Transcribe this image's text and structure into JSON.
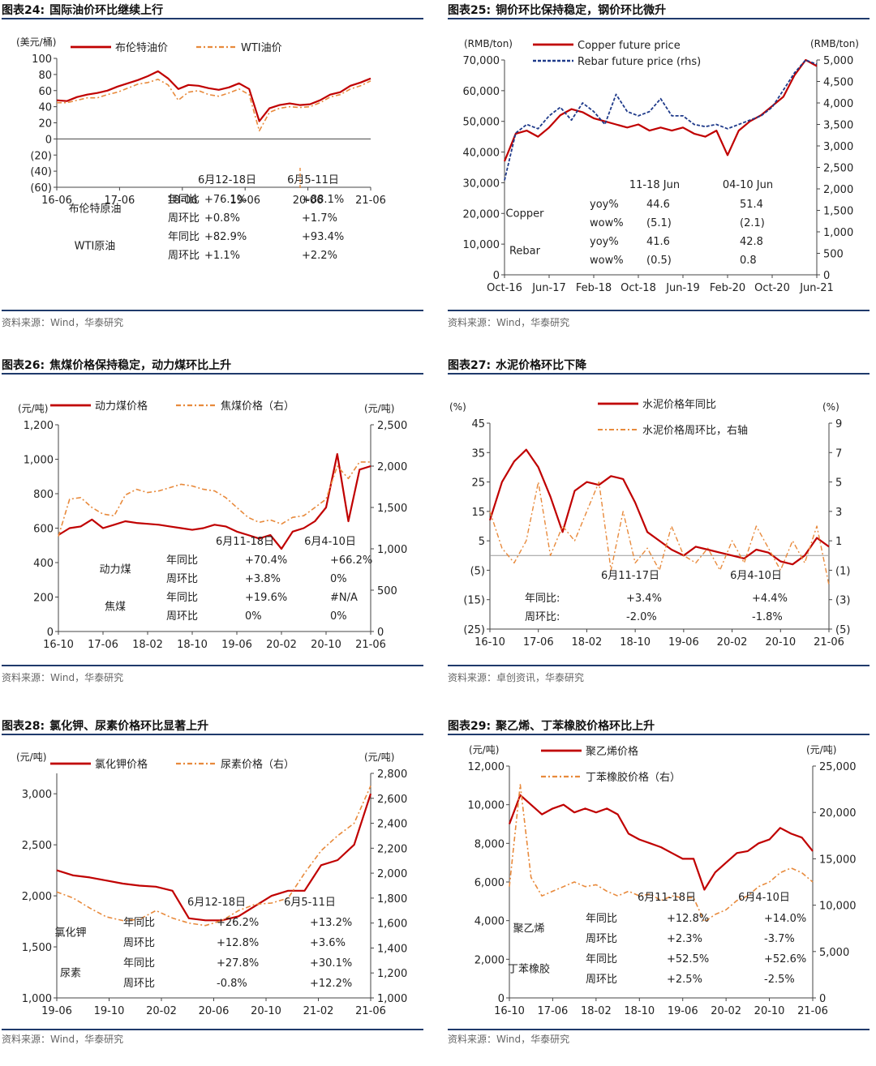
{
  "chart_data": [
    {
      "type": "line",
      "fig": "图表24:",
      "title": "国际油价环比继续上行",
      "source": "资料来源：Wind，华泰研究",
      "ylabel_left": "(美元/桶)",
      "ylabel_right": "",
      "ylim_left": [
        -60,
        100
      ],
      "yticks_left": [
        "100",
        "80",
        "60",
        "40",
        "20",
        "0",
        "(20)",
        "(40)",
        "(60)"
      ],
      "yticks_left_values": [
        100,
        80,
        60,
        40,
        20,
        0,
        -20,
        -40,
        -60
      ],
      "ylim_right": null,
      "yticks_right": [],
      "yticks_right_values": [],
      "xticks": [
        "16-06",
        "17-06",
        "18-06",
        "19-06",
        "20-06",
        "21-06"
      ],
      "series": [
        {
          "name": "布伦特油价",
          "axis": "left",
          "color": "#c00000",
          "dash": "",
          "width": 2.2,
          "values": [
            48,
            47,
            52,
            55,
            57,
            60,
            65,
            69,
            73,
            78,
            84,
            75,
            62,
            67,
            66,
            63,
            61,
            64,
            69,
            62,
            22,
            38,
            42,
            44,
            42,
            43,
            48,
            55,
            58,
            66,
            70,
            75
          ]
        },
        {
          "name": "WTI油价",
          "axis": "left",
          "color": "#e88a3c",
          "dash": "6,3,2,3",
          "width": 1.6,
          "values": [
            45,
            45,
            48,
            51,
            51,
            55,
            58,
            63,
            68,
            70,
            74,
            67,
            48,
            58,
            60,
            55,
            53,
            57,
            62,
            55,
            10,
            33,
            38,
            40,
            39,
            40,
            45,
            52,
            55,
            62,
            66,
            72
          ]
        }
      ],
      "table": {
        "headers": [
          "6月12-18日",
          "6月5-11日"
        ],
        "rows": [
          {
            "group": "布伦特原油",
            "label": "年同比",
            "v1": "+76.1%",
            "v2": "+88.1%"
          },
          {
            "group": "",
            "label": "周环比",
            "v1": "+0.8%",
            "v2": "+1.7%"
          },
          {
            "group": "WTI原油",
            "label": "年同比",
            "v1": "+82.9%",
            "v2": "+93.4%"
          },
          {
            "group": "",
            "label": "周环比",
            "v1": "+1.1%",
            "v2": "+2.2%"
          }
        ]
      }
    },
    {
      "type": "line",
      "fig": "图表25:",
      "title": "铜价环比保持稳定，钢价环比微升",
      "source": "资料来源：Wind，华泰研究",
      "ylabel_left": "(RMB/ton)",
      "ylabel_right": "(RMB/ton)",
      "ylim_left": [
        0,
        70000
      ],
      "yticks_left": [
        "70,000",
        "60,000",
        "50,000",
        "40,000",
        "30,000",
        "20,000",
        "10,000",
        "0"
      ],
      "yticks_left_values": [
        70000,
        60000,
        50000,
        40000,
        30000,
        20000,
        10000,
        0
      ],
      "ylim_right": [
        0,
        5000
      ],
      "yticks_right": [
        "5,000",
        "4,500",
        "4,000",
        "3,500",
        "3,000",
        "2,500",
        "2,000",
        "1,500",
        "1,000",
        "500",
        "0"
      ],
      "yticks_right_values": [
        5000,
        4500,
        4000,
        3500,
        3000,
        2500,
        2000,
        1500,
        1000,
        500,
        0
      ],
      "xticks": [
        "Oct-16",
        "Jun-17",
        "Feb-18",
        "Oct-18",
        "Jun-19",
        "Feb-20",
        "Oct-20",
        "Jun-21"
      ],
      "series": [
        {
          "name": "Copper future price",
          "axis": "left",
          "color": "#c00000",
          "dash": "",
          "width": 2.2,
          "values": [
            37000,
            46000,
            47000,
            45000,
            48000,
            52000,
            54000,
            53000,
            51000,
            50000,
            49000,
            48000,
            49000,
            47000,
            48000,
            47000,
            48000,
            46000,
            45000,
            47000,
            39000,
            47000,
            50000,
            52000,
            55000,
            58000,
            65000,
            70000,
            68000
          ]
        },
        {
          "name": "Rebar future price (rhs)",
          "axis": "right",
          "color": "#1f3a8a",
          "dash": "4,2",
          "width": 1.8,
          "values": [
            2200,
            3300,
            3500,
            3400,
            3700,
            3900,
            3600,
            4000,
            3800,
            3500,
            4200,
            3800,
            3700,
            3800,
            4100,
            3700,
            3700,
            3500,
            3450,
            3500,
            3400,
            3500,
            3600,
            3700,
            3900,
            4300,
            4700,
            5000,
            4900
          ]
        }
      ],
      "table": {
        "headers": [
          "11-18 Jun",
          "04-10 Jun"
        ],
        "rows": [
          {
            "group": "Copper",
            "label": "yoy%",
            "v1": "44.6",
            "v2": "51.4"
          },
          {
            "group": "",
            "label": "wow%",
            "v1": "(5.1)",
            "v2": "(2.1)"
          },
          {
            "group": "Rebar",
            "label": "yoy%",
            "v1": "41.6",
            "v2": "42.8"
          },
          {
            "group": "",
            "label": "wow%",
            "v1": "(0.5)",
            "v2": "0.8"
          }
        ]
      }
    },
    {
      "type": "line",
      "fig": "图表26:",
      "title": "焦煤价格保持稳定，动力煤环比上升",
      "source": "资料来源：Wind，华泰研究",
      "ylabel_left": "(元/吨)",
      "ylabel_right": "(元/吨)",
      "ylim_left": [
        0,
        1200
      ],
      "yticks_left": [
        "1,200",
        "1,000",
        "800",
        "600",
        "400",
        "200",
        "0"
      ],
      "yticks_left_values": [
        1200,
        1000,
        800,
        600,
        400,
        200,
        0
      ],
      "ylim_right": [
        0,
        2500
      ],
      "yticks_right": [
        "2,500",
        "2,000",
        "1,500",
        "1,000",
        "500",
        "0"
      ],
      "yticks_right_values": [
        2500,
        2000,
        1500,
        1000,
        500,
        0
      ],
      "xticks": [
        "16-10",
        "17-06",
        "18-02",
        "18-10",
        "19-06",
        "20-02",
        "20-10",
        "21-06"
      ],
      "series": [
        {
          "name": "动力煤价格",
          "axis": "left",
          "color": "#c00000",
          "dash": "",
          "width": 2.2,
          "values": [
            560,
            600,
            610,
            650,
            600,
            620,
            640,
            630,
            625,
            620,
            610,
            600,
            590,
            600,
            620,
            610,
            580,
            560,
            540,
            560,
            480,
            580,
            600,
            640,
            720,
            1030,
            640,
            940,
            960
          ]
        },
        {
          "name": "焦煤价格（右）",
          "axis": "right",
          "color": "#e88a3c",
          "dash": "6,3,2,3",
          "width": 1.6,
          "values": [
            1150,
            1600,
            1620,
            1500,
            1420,
            1400,
            1650,
            1720,
            1680,
            1700,
            1740,
            1780,
            1760,
            1720,
            1700,
            1620,
            1500,
            1380,
            1320,
            1350,
            1300,
            1380,
            1400,
            1500,
            1600,
            2000,
            1850,
            2050,
            2050
          ]
        }
      ],
      "table": {
        "headers": [
          "6月11-18日",
          "6月4-10日"
        ],
        "rows": [
          {
            "group": "动力煤",
            "label": "年同比",
            "v1": "+70.4%",
            "v2": "+66.2%"
          },
          {
            "group": "",
            "label": "周环比",
            "v1": "+3.8%",
            "v2": "0%"
          },
          {
            "group": "焦煤",
            "label": "年同比",
            "v1": "+19.6%",
            "v2": "#N/A"
          },
          {
            "group": "",
            "label": "周环比",
            "v1": "0%",
            "v2": "0%"
          }
        ]
      }
    },
    {
      "type": "line",
      "fig": "图表27:",
      "title": "水泥价格环比下降",
      "source": "资料来源：卓创资讯，华泰研究",
      "ylabel_left": "(%)",
      "ylabel_right": "(%)",
      "ylim_left": [
        -25,
        45
      ],
      "yticks_left": [
        "45",
        "35",
        "25",
        "15",
        "5",
        "(5)",
        "(15)",
        "(25)"
      ],
      "yticks_left_values": [
        45,
        35,
        25,
        15,
        5,
        -5,
        -15,
        -25
      ],
      "ylim_right": [
        -5,
        9
      ],
      "yticks_right": [
        "9",
        "7",
        "5",
        "3",
        "1",
        "(1)",
        "(3)",
        "(5)"
      ],
      "yticks_right_values": [
        9,
        7,
        5,
        3,
        1,
        -1,
        -3,
        -5
      ],
      "xticks": [
        "16-10",
        "17-06",
        "18-02",
        "18-10",
        "19-06",
        "20-02",
        "20-10",
        "21-06"
      ],
      "series": [
        {
          "name": "水泥价格年同比",
          "axis": "left",
          "color": "#c00000",
          "dash": "",
          "width": 2.2,
          "values": [
            12,
            25,
            32,
            36,
            30,
            20,
            8,
            22,
            25,
            24,
            27,
            26,
            18,
            8,
            5,
            2,
            0,
            3,
            2,
            1,
            0,
            -1,
            2,
            1,
            -2,
            -3,
            0,
            6,
            3
          ]
        },
        {
          "name": "水泥价格周环比，右轴",
          "axis": "right",
          "color": "#e88a3c",
          "dash": "6,3,2,3",
          "width": 1.4,
          "values": [
            3,
            0.5,
            -0.5,
            1,
            5,
            0,
            2,
            1,
            3,
            5,
            -1,
            3,
            -0.5,
            0.5,
            -1,
            2,
            0,
            -0.5,
            0.5,
            -1,
            1,
            -0.5,
            2,
            0.5,
            -1,
            1,
            -0.5,
            2,
            -2
          ]
        }
      ],
      "table": {
        "headers": [
          "6月11-17日",
          "6月4-10日"
        ],
        "rows": [
          {
            "group": "",
            "label": "年同比:",
            "v1": "+3.4%",
            "v2": "+4.4%"
          },
          {
            "group": "",
            "label": "周环比:",
            "v1": "-2.0%",
            "v2": "-1.8%"
          }
        ]
      }
    },
    {
      "type": "line",
      "fig": "图表28:",
      "title": "氯化钾、尿素价格环比显著上升",
      "source": "资料来源：Wind，华泰研究",
      "ylabel_left": "(元/吨)",
      "ylabel_right": "(元/吨)",
      "ylim_left": [
        1000,
        3200
      ],
      "yticks_left": [
        "3,000",
        "2,500",
        "2,000",
        "1,500",
        "1,000"
      ],
      "yticks_left_values": [
        3000,
        2500,
        2000,
        1500,
        1000
      ],
      "ylim_right": [
        1000,
        2800
      ],
      "yticks_right": [
        "2,800",
        "2,600",
        "2,400",
        "2,200",
        "2,000",
        "1,800",
        "1,600",
        "1,400",
        "1,200",
        "1,000"
      ],
      "yticks_right_values": [
        2800,
        2600,
        2400,
        2200,
        2000,
        1800,
        1600,
        1400,
        1200,
        1000
      ],
      "xticks": [
        "19-06",
        "19-10",
        "20-02",
        "20-06",
        "20-10",
        "21-02",
        "21-06"
      ],
      "series": [
        {
          "name": "氯化钾价格",
          "axis": "left",
          "color": "#c00000",
          "dash": "",
          "width": 2.2,
          "values": [
            2250,
            2200,
            2180,
            2150,
            2120,
            2100,
            2090,
            2050,
            1780,
            1760,
            1760,
            1800,
            1900,
            2000,
            2050,
            2050,
            2300,
            2350,
            2500,
            3000
          ]
        },
        {
          "name": "尿素价格（右）",
          "axis": "right",
          "color": "#e88a3c",
          "dash": "6,3,2,3",
          "width": 1.6,
          "values": [
            1850,
            1800,
            1720,
            1650,
            1620,
            1630,
            1700,
            1640,
            1600,
            1580,
            1620,
            1700,
            1750,
            1760,
            1800,
            2000,
            2180,
            2300,
            2400,
            2700
          ]
        }
      ],
      "table": {
        "headers": [
          "6月12-18日",
          "6月5-11日"
        ],
        "rows": [
          {
            "group": "氯化钾",
            "label": "年同比",
            "v1": "+26.2%",
            "v2": "+13.2%"
          },
          {
            "group": "",
            "label": "周环比",
            "v1": "+12.8%",
            "v2": "+3.6%"
          },
          {
            "group": "尿素",
            "label": "年同比",
            "v1": "+27.8%",
            "v2": "+30.1%"
          },
          {
            "group": "",
            "label": "周环比",
            "v1": "-0.8%",
            "v2": "+12.2%"
          }
        ]
      }
    },
    {
      "type": "line",
      "fig": "图表29:",
      "title": "聚乙烯、丁苯橡胶价格环比上升",
      "source": "资料来源：Wind，华泰研究",
      "ylabel_left": "(元/吨)",
      "ylabel_right": "(元/吨)",
      "ylim_left": [
        0,
        12000
      ],
      "yticks_left": [
        "12,000",
        "10,000",
        "8,000",
        "6,000",
        "4,000",
        "2,000",
        "0"
      ],
      "yticks_left_values": [
        12000,
        10000,
        8000,
        6000,
        4000,
        2000,
        0
      ],
      "ylim_right": [
        0,
        25000
      ],
      "yticks_right": [
        "25,000",
        "20,000",
        "15,000",
        "10,000",
        "5,000",
        "0"
      ],
      "yticks_right_values": [
        25000,
        20000,
        15000,
        10000,
        5000,
        0
      ],
      "xticks": [
        "16-10",
        "17-06",
        "18-02",
        "18-10",
        "19-06",
        "20-02",
        "20-10",
        "21-06"
      ],
      "series": [
        {
          "name": "聚乙烯价格",
          "axis": "left",
          "color": "#c00000",
          "dash": "",
          "width": 2.2,
          "values": [
            9000,
            10500,
            10000,
            9500,
            9800,
            10000,
            9600,
            9800,
            9600,
            9800,
            9500,
            8500,
            8200,
            8000,
            7800,
            7500,
            7200,
            7200,
            5600,
            6500,
            7000,
            7500,
            7600,
            8000,
            8200,
            8800,
            8500,
            8300,
            7600
          ]
        },
        {
          "name": "丁苯橡胶价格（右）",
          "axis": "right",
          "color": "#e88a3c",
          "dash": "6,3,2,3",
          "width": 1.6,
          "values": [
            12000,
            23000,
            13000,
            11000,
            11500,
            12000,
            12500,
            12000,
            12200,
            11500,
            11000,
            11500,
            11000,
            11200,
            10500,
            11000,
            10800,
            10800,
            8200,
            9000,
            9500,
            10500,
            11000,
            12000,
            12500,
            13500,
            14000,
            13500,
            12500
          ]
        }
      ],
      "table": {
        "headers": [
          "6月11-18日",
          "6月4-10日"
        ],
        "rows": [
          {
            "group": "聚乙烯",
            "label": "年同比",
            "v1": "+12.8%",
            "v2": "+14.0%"
          },
          {
            "group": "",
            "label": "周环比",
            "v1": "+2.3%",
            "v2": "-3.7%"
          },
          {
            "group": "丁苯橡胶",
            "label": "年同比",
            "v1": "+52.5%",
            "v2": "+52.6%"
          },
          {
            "group": "",
            "label": "周环比",
            "v1": "+2.5%",
            "v2": "-2.5%"
          }
        ]
      }
    }
  ]
}
